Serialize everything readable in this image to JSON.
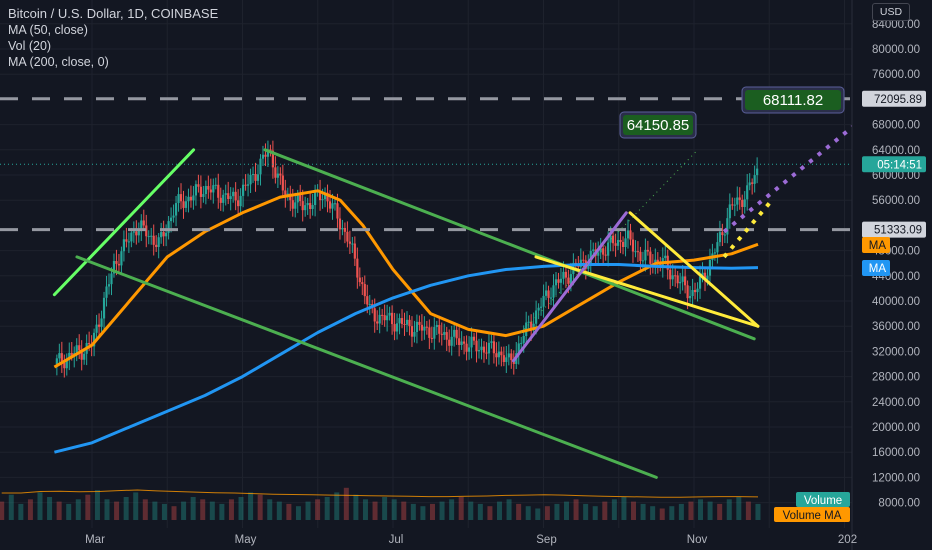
{
  "legend": {
    "title": "Bitcoin / U.S. Dollar, 1D, COINBASE",
    "indicators": [
      "MA (50, close)",
      "Vol (20)",
      "MA (200, close, 0)"
    ]
  },
  "currency": "USD",
  "colors": {
    "background": "#131722",
    "grid": "#1e222d",
    "ma50": "#ff9800",
    "ma200": "#2196f3",
    "up_candle": "#26a69a",
    "down_candle": "#ef5350",
    "trend_green": "#4caf50",
    "trend_lightgreen": "#66ff66",
    "trend_yellow": "#ffeb3b",
    "trend_purple": "#9c6bd6",
    "dash": "#9598a1",
    "target_box": "#1b5e20"
  },
  "price_tags": {
    "target_1": "64150.85",
    "target_2": "68111.82",
    "level_high": "72095.89",
    "countdown": "05:14:51",
    "level_mid": "51333.09",
    "ma50_label": "MA",
    "ma200_label": "MA",
    "volume_label": "Volume",
    "volume_ma_label": "Volume MA"
  },
  "chart_data": {
    "type": "line",
    "title": "Bitcoin / U.S. Dollar, 1D, COINBASE",
    "ylabel": "USD",
    "xlabel": "",
    "ylim": [
      0,
      88000
    ],
    "y_ticks": [
      "84000.00",
      "80000.00",
      "76000.00",
      "68000.00",
      "64000.00",
      "60000.00",
      "56000.00",
      "48000.00",
      "44000.00",
      "40000.00",
      "36000.00",
      "32000.00",
      "28000.00",
      "24000.00",
      "20000.00",
      "16000.00",
      "12000.00",
      "8000.00"
    ],
    "x_ticks": [
      "Mar",
      "May",
      "Jul",
      "Sep",
      "Nov",
      "202"
    ],
    "grid": true,
    "x_months": [
      0,
      1,
      2,
      3,
      4,
      5,
      6,
      7,
      8,
      9,
      10,
      11
    ],
    "price_path": [
      [
        -0.5,
        30000
      ],
      [
        0.0,
        33000
      ],
      [
        0.3,
        46000
      ],
      [
        0.6,
        52000
      ],
      [
        0.9,
        49000
      ],
      [
        1.1,
        55000
      ],
      [
        1.5,
        58000
      ],
      [
        1.9,
        56000
      ],
      [
        2.1,
        59000
      ],
      [
        2.35,
        64000
      ],
      [
        2.55,
        57000
      ],
      [
        2.8,
        55000
      ],
      [
        3.1,
        57000
      ],
      [
        3.4,
        50000
      ],
      [
        3.7,
        38000
      ],
      [
        4.2,
        36000
      ],
      [
        4.6,
        35000
      ],
      [
        5.0,
        33000
      ],
      [
        5.4,
        32000
      ],
      [
        5.55,
        30000
      ],
      [
        5.8,
        36000
      ],
      [
        6.1,
        42000
      ],
      [
        6.5,
        46000
      ],
      [
        6.9,
        49000
      ],
      [
        7.1,
        50000
      ],
      [
        7.3,
        47000
      ],
      [
        7.6,
        46000
      ],
      [
        7.8,
        43000
      ],
      [
        8.0,
        41000
      ],
      [
        8.25,
        47000
      ],
      [
        8.5,
        55000
      ],
      [
        8.7,
        57000
      ],
      [
        8.85,
        61000
      ]
    ],
    "series": [
      {
        "name": "MA (50, close)",
        "points": [
          [
            -0.5,
            29500
          ],
          [
            0.0,
            33000
          ],
          [
            0.5,
            40000
          ],
          [
            1.0,
            47000
          ],
          [
            1.5,
            51000
          ],
          [
            2.0,
            54000
          ],
          [
            2.5,
            56500
          ],
          [
            3.0,
            57500
          ],
          [
            3.3,
            56000
          ],
          [
            3.6,
            52000
          ],
          [
            4.0,
            45000
          ],
          [
            4.5,
            38000
          ],
          [
            5.0,
            35500
          ],
          [
            5.5,
            34500
          ],
          [
            6.0,
            36000
          ],
          [
            6.5,
            39500
          ],
          [
            7.0,
            43000
          ],
          [
            7.5,
            46000
          ],
          [
            8.0,
            46500
          ],
          [
            8.5,
            47500
          ],
          [
            8.85,
            49000
          ]
        ]
      },
      {
        "name": "MA (200, close, 0)",
        "points": [
          [
            -0.5,
            16000
          ],
          [
            0.0,
            17500
          ],
          [
            0.5,
            20000
          ],
          [
            1.0,
            22500
          ],
          [
            1.5,
            25000
          ],
          [
            2.0,
            28000
          ],
          [
            2.5,
            31500
          ],
          [
            3.0,
            35000
          ],
          [
            3.5,
            38000
          ],
          [
            4.0,
            40500
          ],
          [
            4.5,
            42500
          ],
          [
            5.0,
            44000
          ],
          [
            5.5,
            45000
          ],
          [
            6.0,
            45500
          ],
          [
            6.5,
            45800
          ],
          [
            7.0,
            45800
          ],
          [
            7.5,
            45500
          ],
          [
            8.0,
            45300
          ],
          [
            8.5,
            45200
          ],
          [
            8.85,
            45300
          ]
        ]
      }
    ],
    "volume": {
      "name": "Vol (20)",
      "values": [
        8,
        11,
        7,
        9,
        12,
        10,
        8,
        7,
        9,
        11,
        13,
        9,
        8,
        10,
        12,
        9,
        8,
        7,
        6,
        8,
        10,
        9,
        8,
        7,
        9,
        10,
        12,
        11,
        9,
        8,
        7,
        6,
        8,
        9,
        10,
        12,
        14,
        11,
        9,
        8,
        10,
        9,
        8,
        7,
        6,
        7,
        8,
        9,
        10,
        8,
        7,
        6,
        8,
        9,
        7,
        6,
        5,
        6,
        7,
        8,
        9,
        7,
        6,
        8,
        9,
        10,
        8,
        7,
        6,
        5,
        6,
        7,
        8,
        9,
        8,
        7,
        9,
        10,
        8,
        7
      ],
      "ma_values": [
        9,
        9,
        9.5,
        9.6,
        9.4,
        9.5,
        9.8,
        10,
        9.7,
        9.5,
        9.3,
        9.1,
        9,
        8.8,
        8.6,
        8.5,
        8.4,
        8.3,
        8.2,
        8.1,
        8,
        7.9,
        7.8,
        7.8,
        7.9,
        8,
        8.2,
        8.3,
        8.4,
        8.3,
        8.1,
        7.9,
        7.8,
        7.7,
        7.6,
        7.6,
        7.7,
        7.8,
        7.8,
        7.7
      ]
    },
    "annotations": {
      "hlines": [
        72095.89,
        51333.09
      ],
      "target_1": 64150.85,
      "target_2": 68111.82,
      "trendlines": [
        {
          "color": "trend_lightgreen",
          "from": [
            -0.5,
            41000
          ],
          "to": [
            1.35,
            64000
          ]
        },
        {
          "color": "trend_green",
          "from": [
            -0.2,
            47000
          ],
          "to": [
            7.5,
            12000
          ]
        },
        {
          "color": "trend_green",
          "from": [
            2.3,
            64000
          ],
          "to": [
            8.8,
            34000
          ]
        },
        {
          "color": "trend_yellow",
          "from": [
            5.9,
            47000
          ],
          "to": [
            8.85,
            36000
          ]
        },
        {
          "color": "trend_yellow",
          "from": [
            7.15,
            54000
          ],
          "to": [
            8.85,
            36000
          ]
        },
        {
          "color": "trend_purple",
          "from": [
            5.6,
            30500
          ],
          "to": [
            7.1,
            54000
          ]
        }
      ],
      "projections": [
        {
          "color": "trend_purple",
          "from": [
            8.4,
            51000
          ],
          "to": [
            10.35,
            70000
          ],
          "style": "dotted"
        },
        {
          "color": "trend_yellow",
          "from": [
            8.4,
            47000
          ],
          "to": [
            9.0,
            55500
          ],
          "style": "dotted"
        },
        {
          "color": "trend_green",
          "from": [
            5.7,
            35000
          ],
          "to": [
            8.05,
            64000
          ],
          "style": "dotted-thin"
        }
      ]
    }
  }
}
